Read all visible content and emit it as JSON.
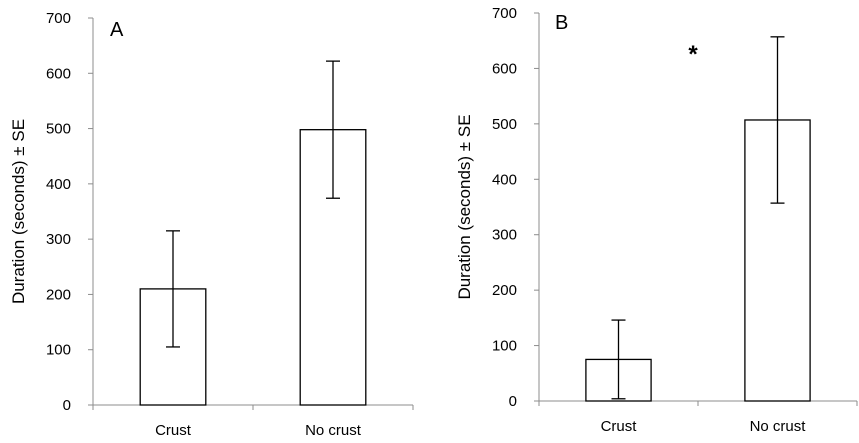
{
  "chart_data": [
    {
      "type": "bar",
      "panel_label": "A",
      "categories": [
        "Crust",
        "No crust"
      ],
      "values": [
        210,
        498
      ],
      "error_se": [
        105,
        124
      ],
      "ylabel": "Duration (seconds) ± SE",
      "xlabel": "",
      "ylim": [
        0,
        700
      ],
      "yticks": [
        0,
        100,
        200,
        300,
        400,
        500,
        600,
        700
      ],
      "grid": false,
      "annotation": "",
      "bar_fill": "#ffffff",
      "bar_stroke": "#000000"
    },
    {
      "type": "bar",
      "panel_label": "B",
      "categories": [
        "Crust",
        "No crust"
      ],
      "values": [
        75,
        507
      ],
      "error_se": [
        71,
        150
      ],
      "ylabel": "Duration (seconds) ± SE",
      "xlabel": "",
      "ylim": [
        0,
        700
      ],
      "yticks": [
        0,
        100,
        200,
        300,
        400,
        500,
        600,
        700
      ],
      "grid": false,
      "annotation": "*",
      "bar_fill": "#ffffff",
      "bar_stroke": "#000000"
    }
  ]
}
